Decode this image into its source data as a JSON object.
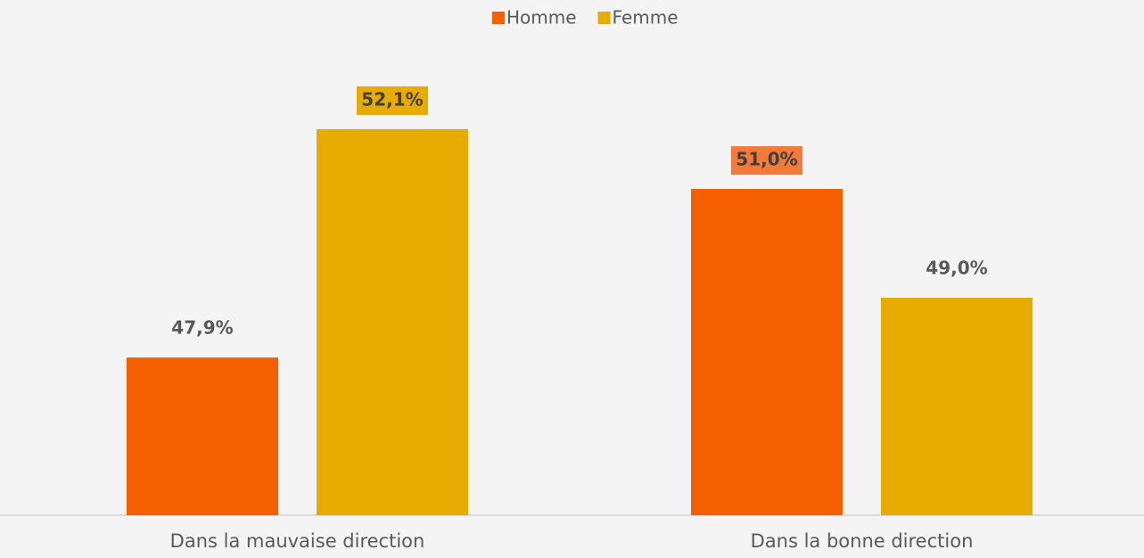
{
  "chart_data": {
    "type": "bar",
    "categories": [
      "Dans la mauvaise direction",
      "Dans la bonne direction"
    ],
    "series": [
      {
        "name": "Homme",
        "color": "#f55f00",
        "values": [
          47.9,
          51.0
        ],
        "value_labels": [
          "47,9%",
          "51,0%"
        ]
      },
      {
        "name": "Femme",
        "color": "#e8ab00",
        "values": [
          52.1,
          49.0
        ],
        "value_labels": [
          "52,1%",
          "49,0%"
        ]
      }
    ],
    "ylim": [
      45,
      53
    ],
    "legend": "top"
  }
}
